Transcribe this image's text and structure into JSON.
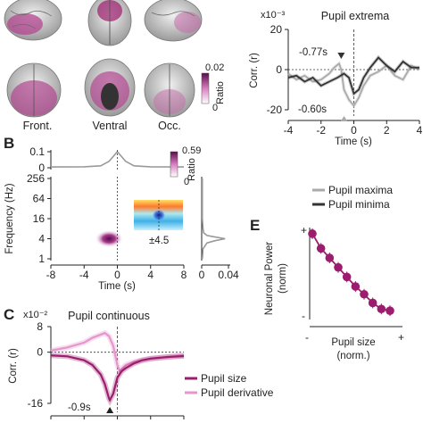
{
  "figure": {
    "panel_a": {
      "view_labels": [
        "Front.",
        "Ventral",
        "Occ."
      ],
      "colorbar": {
        "label": "Ratio",
        "max": "0.02",
        "min": "0"
      }
    },
    "panel_b": {
      "letter": "B",
      "colorbar": {
        "label": "Ratio",
        "max": "0.59",
        "min": "0"
      },
      "inset_label": "±4.5"
    },
    "panel_c": {
      "letter": "C",
      "title": "Pupil continuous"
    },
    "panel_d": {
      "title": "Pupil extrema",
      "ann_max": "-0.77s",
      "ann_min": "-0.60s"
    },
    "panel_e": {
      "letter": "E"
    }
  },
  "chart_data": [
    {
      "id": "D",
      "type": "line",
      "title": "Pupil extrema",
      "xlabel": "Time (s)",
      "ylabel": "Corr. (r)",
      "scale_label": "x10⁻³",
      "xlim": [
        -4,
        4
      ],
      "ylim": [
        -20,
        20
      ],
      "xticks": [
        -4,
        -2,
        0,
        2,
        4
      ],
      "yticks": [
        -20,
        0,
        20
      ],
      "series": [
        {
          "name": "Pupil maxima",
          "color": "#aaaaaa",
          "x": [
            -4,
            -3.5,
            -3,
            -2.5,
            -2,
            -1.5,
            -1.2,
            -0.9,
            -0.77,
            -0.6,
            -0.3,
            0,
            0.3,
            0.6,
            1,
            1.5,
            2,
            2.5,
            3,
            3.5,
            4
          ],
          "y": [
            -2,
            -5,
            -3,
            -6,
            -5,
            -2,
            1,
            3,
            0,
            -10,
            -15,
            -18,
            -14,
            -8,
            -3,
            -1,
            2,
            -3,
            -5,
            2,
            0
          ]
        },
        {
          "name": "Pupil minima",
          "color": "#333333",
          "x": [
            -4,
            -3.5,
            -3,
            -2.5,
            -2,
            -1.5,
            -1,
            -0.6,
            -0.3,
            0,
            0.3,
            0.6,
            1,
            1.5,
            2,
            2.5,
            3,
            3.5,
            4
          ],
          "y": [
            -4,
            -3,
            -6,
            -4,
            -8,
            -6,
            -4,
            -2,
            -4,
            -12,
            -10,
            -4,
            1,
            6,
            2,
            -1,
            4,
            1,
            1
          ]
        }
      ],
      "annotations": [
        {
          "text": "-0.77s"
        },
        {
          "text": "-0.60s"
        }
      ]
    },
    {
      "id": "B-top",
      "type": "line",
      "xlim": [
        -8,
        8
      ],
      "ylim": [
        0,
        0.1
      ],
      "yticks": [
        0,
        0.1
      ],
      "series": [
        {
          "color": "#999999",
          "x": [
            -8,
            -4,
            -2,
            -1,
            -0.5,
            0,
            0.5,
            1,
            2,
            4,
            8
          ],
          "y": [
            0.005,
            0.006,
            0.012,
            0.04,
            0.07,
            0.1,
            0.07,
            0.04,
            0.012,
            0.006,
            0.005
          ]
        }
      ]
    },
    {
      "id": "B",
      "type": "heatmap",
      "xlabel": "Time (s)",
      "ylabel": "Frequency (Hz)",
      "xlim": [
        -8,
        8
      ],
      "xticks": [
        -8,
        -4,
        0,
        4,
        8
      ],
      "yticks": [
        1,
        4,
        16,
        64,
        256
      ],
      "peak": {
        "time": -1,
        "frequency": 4,
        "ratio": 0.59
      },
      "colorbar_range": [
        0,
        0.59
      ]
    },
    {
      "id": "B-side",
      "type": "line",
      "xlim": [
        0,
        0.04
      ],
      "xticks": [
        0,
        0.04
      ],
      "series": [
        {
          "color": "#999999",
          "freq": [
            1,
            2,
            3,
            3.5,
            4,
            4.5,
            5,
            6,
            8,
            16,
            64,
            256
          ],
          "value": [
            0.001,
            0.002,
            0.008,
            0.02,
            0.035,
            0.02,
            0.008,
            0.003,
            0.002,
            0.001,
            0.001,
            0.001
          ]
        }
      ]
    },
    {
      "id": "C",
      "type": "line",
      "title": "Pupil continuous",
      "ylabel": "Corr. (r)",
      "scale_label": "x10⁻²",
      "xlim": [
        -8,
        8
      ],
      "ylim": [
        -16,
        8
      ],
      "yticks": [
        -16,
        0,
        8
      ],
      "series": [
        {
          "name": "Pupil size",
          "color": "#9c1d6e",
          "x": [
            -8,
            -6,
            -4,
            -3,
            -2,
            -1.5,
            -1,
            -0.9,
            -0.5,
            0,
            0.5,
            1,
            2,
            3,
            4,
            6,
            8
          ],
          "y": [
            -1,
            -1.3,
            -2.5,
            -4,
            -7,
            -10,
            -14.5,
            -15,
            -13,
            -8,
            -6,
            -5,
            -3.5,
            -2.5,
            -2,
            -1.5,
            -1.2
          ]
        },
        {
          "name": "Pupil derivative",
          "color": "#e596cc",
          "x": [
            -8,
            -6,
            -4,
            -3,
            -2,
            -1.5,
            -1,
            -0.5,
            0,
            0.3,
            0.6,
            1,
            2,
            3,
            4,
            6,
            8
          ],
          "y": [
            0.5,
            1.5,
            3,
            4.5,
            5.5,
            6,
            5,
            2,
            -4,
            -6,
            -5,
            -4,
            -3,
            -2.5,
            -2,
            -1.5,
            -1
          ]
        }
      ],
      "annotations": [
        {
          "text": "-0.9s"
        }
      ]
    },
    {
      "id": "E",
      "type": "line",
      "xlabel": "Pupil size\n(norm.)",
      "ylabel": "Neuronal Power\n(norm)",
      "xticks": [
        "-",
        "+"
      ],
      "yticks": [
        "-",
        "+"
      ],
      "series": [
        {
          "color": "#9c1d6e",
          "x": [
            1,
            2,
            3,
            4,
            5,
            6,
            7,
            8,
            9,
            10
          ],
          "y": [
            0.95,
            0.78,
            0.67,
            0.56,
            0.45,
            0.34,
            0.25,
            0.15,
            0.08,
            0.06
          ]
        }
      ]
    }
  ]
}
